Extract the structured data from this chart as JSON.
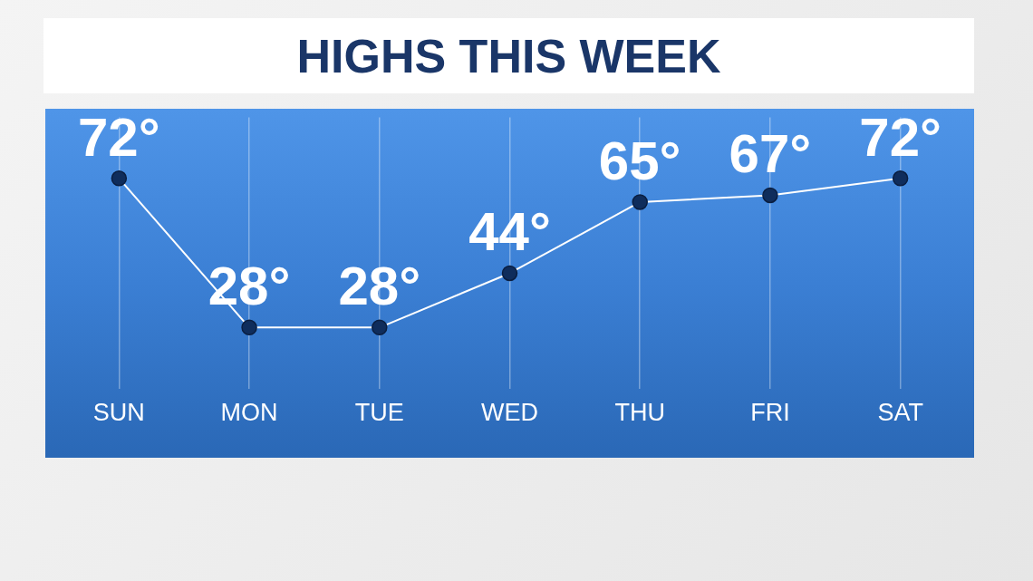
{
  "chart_data": {
    "type": "line",
    "title": "HIGHS THIS WEEK",
    "categories": [
      "SUN",
      "MON",
      "TUE",
      "WED",
      "THU",
      "FRI",
      "SAT"
    ],
    "values": [
      72,
      28,
      28,
      44,
      65,
      67,
      72
    ],
    "value_labels": [
      "72°",
      "28°",
      "28°",
      "44°",
      "65°",
      "67°",
      "72°"
    ],
    "color": "#ffffff",
    "marker": "circle",
    "grid": "x",
    "legend": false
  }
}
